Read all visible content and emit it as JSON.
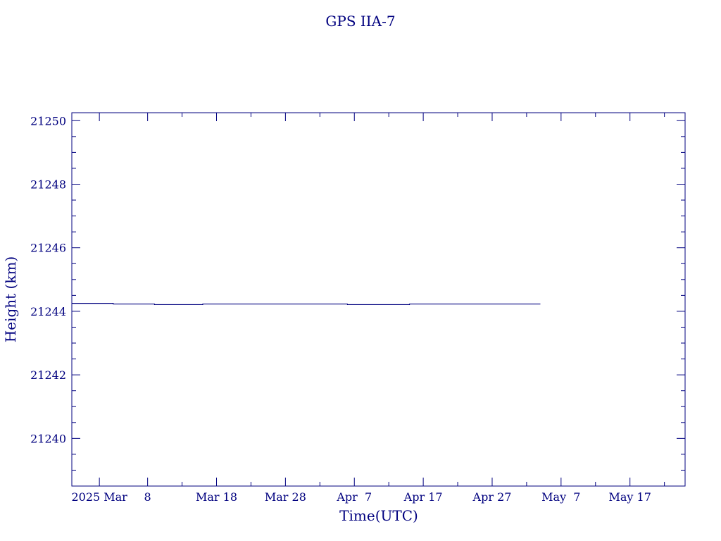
{
  "chart_data": {
    "type": "line",
    "title": "GPS IIA-7",
    "xlabel": "Time(UTC)",
    "ylabel": "Height (km)",
    "x_type": "date",
    "xlim": [
      "2025-02-25",
      "2025-05-25"
    ],
    "ylim": [
      21238.5,
      21250.25
    ],
    "x_ticks": [
      {
        "date": "2025-03-01",
        "label": "2025 Mar"
      },
      {
        "date": "2025-03-08",
        "label": "8"
      },
      {
        "date": "2025-03-18",
        "label": "Mar 18"
      },
      {
        "date": "2025-03-28",
        "label": "Mar 28"
      },
      {
        "date": "2025-04-07",
        "label": "Apr  7"
      },
      {
        "date": "2025-04-17",
        "label": "Apr 17"
      },
      {
        "date": "2025-04-27",
        "label": "Apr 27"
      },
      {
        "date": "2025-05-07",
        "label": "May  7"
      },
      {
        "date": "2025-05-17",
        "label": "May 17"
      }
    ],
    "x_minor_ticks": [
      "2025-03-13",
      "2025-03-23",
      "2025-04-02",
      "2025-04-12",
      "2025-04-22",
      "2025-05-02",
      "2025-05-12",
      "2025-05-22"
    ],
    "y_ticks": [
      21240,
      21242,
      21244,
      21246,
      21248,
      21250
    ],
    "y_minor_step": 0.5,
    "grid": false,
    "series": [
      {
        "color": "#00007f",
        "points": [
          {
            "x": "2025-02-25",
            "y": 21244.25
          },
          {
            "x": "2025-03-03",
            "y": 21244.25
          },
          {
            "x": "2025-03-03",
            "y": 21244.23
          },
          {
            "x": "2025-03-09",
            "y": 21244.23
          },
          {
            "x": "2025-03-09",
            "y": 21244.21
          },
          {
            "x": "2025-03-16",
            "y": 21244.21
          },
          {
            "x": "2025-03-16",
            "y": 21244.23
          },
          {
            "x": "2025-04-06",
            "y": 21244.23
          },
          {
            "x": "2025-04-06",
            "y": 21244.21
          },
          {
            "x": "2025-04-15",
            "y": 21244.21
          },
          {
            "x": "2025-04-15",
            "y": 21244.23
          },
          {
            "x": "2025-05-04",
            "y": 21244.23
          }
        ]
      }
    ]
  }
}
